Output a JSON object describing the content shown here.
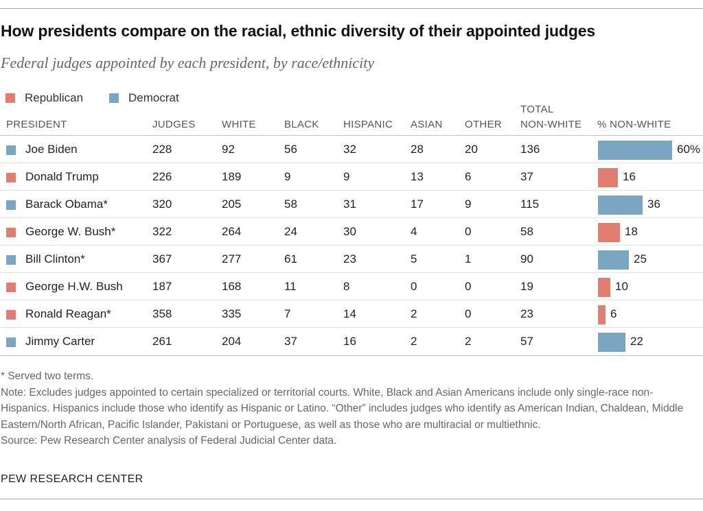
{
  "title": "How presidents compare on the racial, ethnic diversity of their appointed judges",
  "subtitle": "Federal judges appointed by each president, by race/ethnicity",
  "colors": {
    "republican": "#e27d72",
    "democrat": "#7aa6c2"
  },
  "legend": [
    {
      "label": "Republican",
      "party": "republican"
    },
    {
      "label": "Democrat",
      "party": "democrat"
    }
  ],
  "chart_data": {
    "type": "table",
    "title": "How presidents compare on the racial, ethnic diversity of their appointed judges",
    "columns": [
      "PRESIDENT",
      "JUDGES",
      "WHITE",
      "BLACK",
      "HISPANIC",
      "ASIAN",
      "OTHER",
      "TOTAL",
      "NON-WHITE",
      "% NON-WHITE"
    ],
    "header": {
      "president": "PRESIDENT",
      "judges": "JUDGES",
      "white": "WHITE",
      "black": "BLACK",
      "hispanic": "HISPANIC",
      "asian": "ASIAN",
      "other": "OTHER",
      "total_top": "TOTAL",
      "total_bottom": "NON-WHITE",
      "pct": "% NON-WHITE"
    },
    "pct_max": 100,
    "rows": [
      {
        "president": "Joe Biden",
        "party": "democrat",
        "judges": "228",
        "white": "92",
        "black": "56",
        "hispanic": "32",
        "asian": "28",
        "other": "20",
        "total": "136",
        "pct": 60,
        "pct_label": "60%"
      },
      {
        "president": "Donald Trump",
        "party": "republican",
        "judges": "226",
        "white": "189",
        "black": "9",
        "hispanic": "9",
        "asian": "13",
        "other": "6",
        "total": "37",
        "pct": 16,
        "pct_label": "16"
      },
      {
        "president": "Barack Obama*",
        "party": "democrat",
        "judges": "320",
        "white": "205",
        "black": "58",
        "hispanic": "31",
        "asian": "17",
        "other": "9",
        "total": "115",
        "pct": 36,
        "pct_label": "36"
      },
      {
        "president": "George W. Bush*",
        "party": "republican",
        "judges": "322",
        "white": "264",
        "black": "24",
        "hispanic": "30",
        "asian": "4",
        "other": "0",
        "total": "58",
        "pct": 18,
        "pct_label": "18"
      },
      {
        "president": "Bill Clinton*",
        "party": "democrat",
        "judges": "367",
        "white": "277",
        "black": "61",
        "hispanic": "23",
        "asian": "5",
        "other": "1",
        "total": "90",
        "pct": 25,
        "pct_label": "25"
      },
      {
        "president": "George H.W. Bush",
        "party": "republican",
        "judges": "187",
        "white": "168",
        "black": "11",
        "hispanic": "8",
        "asian": "0",
        "other": "0",
        "total": "19",
        "pct": 10,
        "pct_label": "10"
      },
      {
        "president": "Ronald Reagan*",
        "party": "republican",
        "judges": "358",
        "white": "335",
        "black": "7",
        "hispanic": "14",
        "asian": "2",
        "other": "0",
        "total": "23",
        "pct": 6,
        "pct_label": "6"
      },
      {
        "president": "Jimmy Carter",
        "party": "democrat",
        "judges": "261",
        "white": "204",
        "black": "37",
        "hispanic": "16",
        "asian": "2",
        "other": "2",
        "total": "57",
        "pct": 22,
        "pct_label": "22"
      }
    ]
  },
  "footnotes": [
    "* Served two terms.",
    "Note: Excludes judges appointed to certain specialized or territorial courts. White, Black and Asian Americans include only single-race non-Hispanics. Hispanics include those who identify as Hispanic or Latino. “Other” includes judges who identify as American Indian, Chaldean, Middle Eastern/North African, Pacific Islander, Pakistani or Portuguese, as well as those who are multiracial or multiethnic.",
    "Source: Pew Research Center analysis of Federal Judicial Center data."
  ],
  "brand": "PEW RESEARCH CENTER"
}
